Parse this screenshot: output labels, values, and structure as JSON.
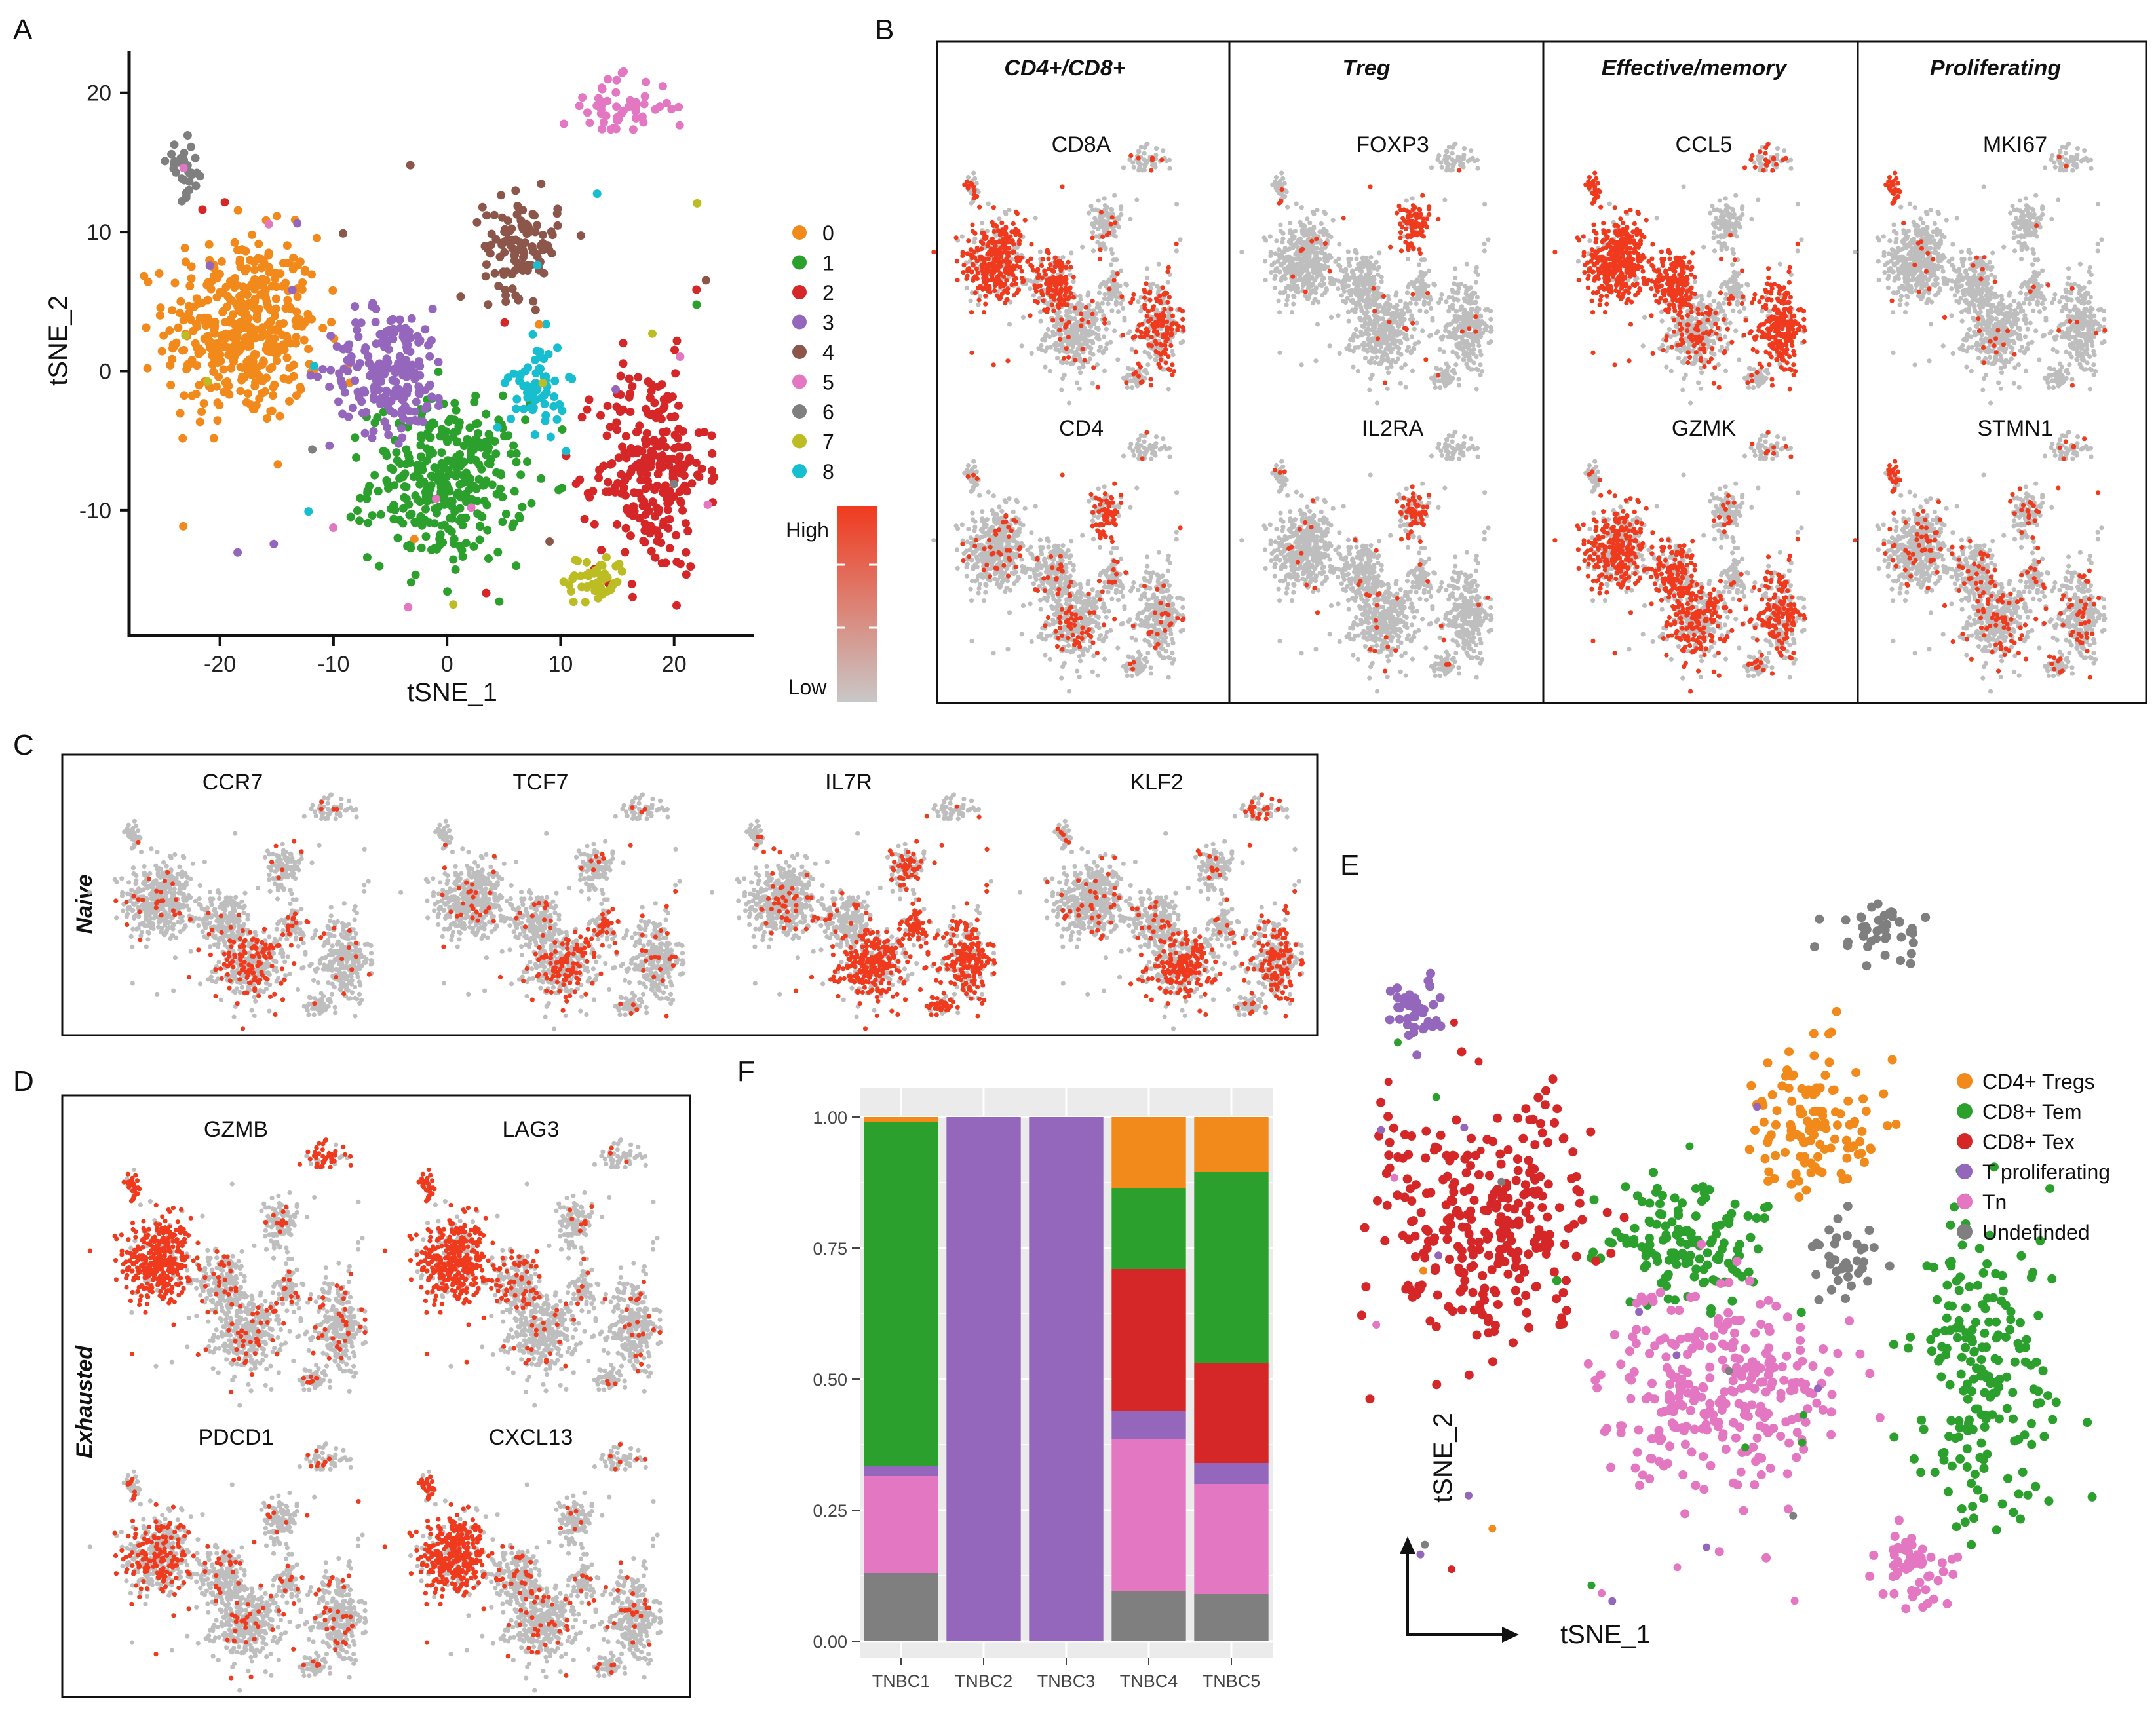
{
  "panel_labels": [
    "A",
    "B",
    "C",
    "D",
    "E",
    "F"
  ],
  "colors": {
    "c0": "#F28A1B",
    "c1": "#2CA02C",
    "c2": "#D62728",
    "c3": "#9467BD",
    "c4": "#8C564B",
    "c5": "#E377C2",
    "c6": "#7F7F7F",
    "c7": "#BCBD22",
    "c8": "#17BECF",
    "grey": "#BEBEBE",
    "high": "#F03A1E"
  },
  "chart_data": [
    {
      "id": "A",
      "type": "scatter",
      "xlabel": "tSNE_1",
      "ylabel": "tSNE_2",
      "xticks": [
        -20,
        -10,
        0,
        10,
        20
      ],
      "yticks": [
        -10,
        0,
        10,
        20
      ],
      "xlim": [
        -28,
        27
      ],
      "ylim": [
        -19,
        23
      ],
      "legend": [
        "0",
        "1",
        "2",
        "3",
        "4",
        "5",
        "6",
        "7",
        "8"
      ],
      "clusters": [
        {
          "name": "0",
          "cx": -18,
          "cy": 3,
          "sx": 4.5,
          "sy": 4.5,
          "n": 420
        },
        {
          "name": "1",
          "cx": 0,
          "cy": -8,
          "sx": 4.5,
          "sy": 3.8,
          "n": 330
        },
        {
          "name": "2",
          "cx": 18,
          "cy": -7,
          "sx": 3.2,
          "sy": 5,
          "n": 260
        },
        {
          "name": "3",
          "cx": -5,
          "cy": 0,
          "sx": 3.5,
          "sy": 3,
          "n": 200
        },
        {
          "name": "4",
          "cx": 6.5,
          "cy": 9,
          "sx": 2.2,
          "sy": 2.3,
          "n": 110
        },
        {
          "name": "5",
          "cx": 15,
          "cy": 19,
          "sx": 3.2,
          "sy": 1.4,
          "n": 55
        },
        {
          "name": "6",
          "cx": -23,
          "cy": 14.5,
          "sx": 1.1,
          "sy": 1.3,
          "n": 30
        },
        {
          "name": "7",
          "cx": 13,
          "cy": -15,
          "sx": 1.8,
          "sy": 1.2,
          "n": 55
        },
        {
          "name": "8",
          "cx": 8,
          "cy": -1,
          "sx": 1.6,
          "sy": 2.2,
          "n": 65
        }
      ],
      "colorbar": {
        "high_label": "High",
        "low_label": "Low"
      }
    },
    {
      "id": "F",
      "type": "bar",
      "stacked": true,
      "categories": [
        "TNBC1",
        "TNBC2",
        "TNBC3",
        "TNBC4",
        "TNBC5"
      ],
      "yticks": [
        "0.00",
        "0.25",
        "0.50",
        "0.75",
        "1.00"
      ],
      "ylim": [
        0,
        1
      ],
      "series": [
        {
          "name": "Undefinded",
          "color": "#7F7F7F",
          "values": [
            0.13,
            0,
            0,
            0.095,
            0.09
          ]
        },
        {
          "name": "Tn",
          "color": "#E377C2",
          "values": [
            0.185,
            0,
            0,
            0.29,
            0.21
          ]
        },
        {
          "name": "T proliferating",
          "color": "#9467BD",
          "values": [
            0.02,
            1.0,
            1.0,
            0.055,
            0.04
          ]
        },
        {
          "name": "CD8+ Tex",
          "color": "#D62728",
          "values": [
            0,
            0,
            0,
            0.27,
            0.19
          ]
        },
        {
          "name": "CD8+ Tem",
          "color": "#2CA02C",
          "values": [
            0.655,
            0,
            0,
            0.155,
            0.365
          ]
        },
        {
          "name": "CD4+ Tregs",
          "color": "#F28A1B",
          "values": [
            0.01,
            0,
            0,
            0.135,
            0.105
          ]
        }
      ]
    },
    {
      "id": "E",
      "type": "scatter",
      "xlabel": "tSNE_1",
      "ylabel": "tSNE_2",
      "legend": [
        "CD4+ Tregs",
        "CD8+ Tem",
        "CD8+ Tex",
        "T proliferating",
        "Tn",
        "Undefinded"
      ]
    }
  ],
  "panelB": {
    "categories": [
      "CD4+/CD8+",
      "Treg",
      "Effective/memory",
      "Proliferating"
    ],
    "genes_top": [
      "CD8A",
      "FOXP3",
      "CCL5",
      "MKI67"
    ],
    "genes_bottom": [
      "CD4",
      "IL2RA",
      "GZMK",
      "STMN1"
    ]
  },
  "panelC": {
    "side_label": "Naive",
    "genes": [
      "CCR7",
      "TCF7",
      "IL7R",
      "KLF2"
    ]
  },
  "panelD": {
    "side_label": "Exhausted",
    "genes": [
      "GZMB",
      "LAG3",
      "PDCD1",
      "CXCL13"
    ]
  }
}
